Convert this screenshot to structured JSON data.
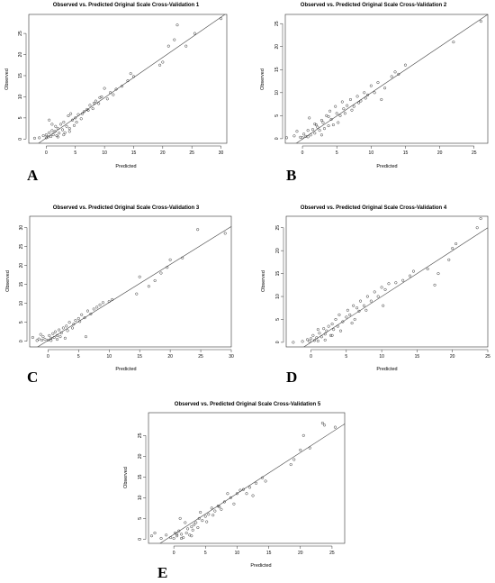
{
  "chart_data": [
    {
      "type": "scatter",
      "letter": "A",
      "title": "Observed vs. Predicted Original Scale Cross-Validation 1",
      "xlabel": "Predicted",
      "ylabel": "Observed",
      "xlim": [
        -3,
        31
      ],
      "ylim": [
        -1,
        29.5
      ],
      "xticks": [
        0,
        5,
        10,
        15,
        20,
        25,
        30
      ],
      "yticks": [
        0,
        5,
        10,
        15,
        20,
        25
      ],
      "fit_line": [
        [
          -3,
          -2.6
        ],
        [
          31,
          29.8
        ]
      ],
      "points": [
        [
          -2,
          0.2
        ],
        [
          -1.2,
          0.3
        ],
        [
          -0.5,
          0.8
        ],
        [
          0,
          0.3
        ],
        [
          0,
          1
        ],
        [
          0.3,
          0.5
        ],
        [
          0.5,
          1.5
        ],
        [
          0.8,
          0.6
        ],
        [
          1,
          2
        ],
        [
          1.2,
          1
        ],
        [
          1.5,
          1.8
        ],
        [
          1.6,
          3
        ],
        [
          1.8,
          0.8
        ],
        [
          2,
          2.5
        ],
        [
          2.2,
          1.4
        ],
        [
          2.5,
          3.5
        ],
        [
          2.8,
          2.2
        ],
        [
          3,
          4
        ],
        [
          3.2,
          1.5
        ],
        [
          3.5,
          3
        ],
        [
          3.8,
          5.5
        ],
        [
          4,
          2.5
        ],
        [
          4.2,
          6
        ],
        [
          4.5,
          4.5
        ],
        [
          4.8,
          3.2
        ],
        [
          5,
          5
        ],
        [
          5.5,
          5.8
        ],
        [
          6,
          4.8
        ],
        [
          6.5,
          6.5
        ],
        [
          7,
          7
        ],
        [
          7.5,
          8
        ],
        [
          8,
          7.2
        ],
        [
          8.5,
          9
        ],
        [
          9,
          8.4
        ],
        [
          9.5,
          10
        ],
        [
          10,
          12
        ],
        [
          10.5,
          9.5
        ],
        [
          11,
          11
        ],
        [
          11.5,
          10.5
        ],
        [
          12,
          11.8
        ],
        [
          13,
          12.5
        ],
        [
          14,
          13.8
        ],
        [
          14.5,
          15.5
        ],
        [
          15,
          14.8
        ],
        [
          19.5,
          17.5
        ],
        [
          20,
          18.2
        ],
        [
          21,
          22
        ],
        [
          22,
          23.5
        ],
        [
          22.5,
          27
        ],
        [
          24,
          22
        ],
        [
          25.5,
          25
        ],
        [
          30,
          28.5
        ],
        [
          0.5,
          4.5
        ],
        [
          1,
          3.5
        ],
        [
          2,
          0.5
        ],
        [
          3,
          1
        ],
        [
          4,
          1.8
        ],
        [
          5.2,
          4
        ],
        [
          6.2,
          6
        ],
        [
          7.2,
          6.8
        ],
        [
          8.2,
          8.5
        ],
        [
          9.2,
          9.8
        ]
      ]
    },
    {
      "type": "scatter",
      "letter": "B",
      "title": "Observed vs. Predicted Original Scale Cross-Validation 2",
      "xlabel": "Predicted",
      "ylabel": "Observed",
      "xlim": [
        -2.5,
        27
      ],
      "ylim": [
        -1,
        27
      ],
      "xticks": [
        0,
        5,
        10,
        15,
        20,
        25
      ],
      "yticks": [
        0,
        5,
        10,
        15,
        20,
        25
      ],
      "fit_line": [
        [
          -2.5,
          -2.6
        ],
        [
          27,
          27
        ]
      ],
      "points": [
        [
          -2.3,
          0.2
        ],
        [
          -1.2,
          0.6
        ],
        [
          -0.8,
          1.6
        ],
        [
          -0.3,
          0.3
        ],
        [
          0,
          0.2
        ],
        [
          0.2,
          1
        ],
        [
          0.5,
          0.5
        ],
        [
          0.8,
          0.4
        ],
        [
          1,
          4.5
        ],
        [
          1.2,
          0.8
        ],
        [
          1.5,
          2
        ],
        [
          1.8,
          1.2
        ],
        [
          2,
          3
        ],
        [
          2.2,
          2.5
        ],
        [
          2.5,
          1.8
        ],
        [
          2.8,
          4
        ],
        [
          3,
          3.5
        ],
        [
          3.2,
          2.2
        ],
        [
          3.5,
          5
        ],
        [
          3.8,
          2.8
        ],
        [
          4,
          6
        ],
        [
          4.2,
          4.2
        ],
        [
          4.5,
          3
        ],
        [
          4.8,
          7
        ],
        [
          5,
          5.5
        ],
        [
          5.5,
          5
        ],
        [
          5.8,
          8
        ],
        [
          6,
          6.5
        ],
        [
          6.5,
          7.2
        ],
        [
          7,
          8.5
        ],
        [
          7.5,
          7
        ],
        [
          8,
          9.2
        ],
        [
          8.5,
          8.2
        ],
        [
          9,
          10
        ],
        [
          9.5,
          9.5
        ],
        [
          10,
          11.5
        ],
        [
          10.5,
          10
        ],
        [
          11,
          12.2
        ],
        [
          11.5,
          8.5
        ],
        [
          12,
          11
        ],
        [
          13,
          13.5
        ],
        [
          13.5,
          14.5
        ],
        [
          14,
          14
        ],
        [
          15,
          16
        ],
        [
          22,
          21
        ],
        [
          26,
          25.5
        ],
        [
          0.8,
          1.8
        ],
        [
          1.8,
          3.2
        ],
        [
          2.8,
          0.8
        ],
        [
          3.8,
          4.8
        ],
        [
          5.2,
          3.5
        ],
        [
          6.2,
          5.5
        ],
        [
          7.2,
          6.2
        ],
        [
          8.2,
          7.8
        ],
        [
          9.2,
          8.8
        ]
      ]
    },
    {
      "type": "scatter",
      "letter": "C",
      "title": "Observed vs. Predicted Original Scale Cross-Validation 3",
      "xlabel": "Predicted",
      "ylabel": "Observed",
      "xlim": [
        -3,
        30
      ],
      "ylim": [
        -1.5,
        33
      ],
      "xticks": [
        0,
        5,
        10,
        15,
        20,
        25,
        30
      ],
      "yticks": [
        0,
        5,
        10,
        15,
        20,
        25,
        30
      ],
      "fit_line": [
        [
          -3,
          -2.8
        ],
        [
          30,
          30.3
        ]
      ],
      "points": [
        [
          -2.5,
          1
        ],
        [
          -1.8,
          0.2
        ],
        [
          -1.5,
          0.6
        ],
        [
          -1,
          0.3
        ],
        [
          -0.8,
          1.2
        ],
        [
          -0.5,
          0.5
        ],
        [
          0,
          0.3
        ],
        [
          0.2,
          1.5
        ],
        [
          0.5,
          0.8
        ],
        [
          0.8,
          2
        ],
        [
          1,
          1
        ],
        [
          1.2,
          2.5
        ],
        [
          1.5,
          1.5
        ],
        [
          1.8,
          3
        ],
        [
          2,
          1.2
        ],
        [
          2.2,
          2.2
        ],
        [
          2.5,
          3.5
        ],
        [
          2.8,
          0.8
        ],
        [
          3,
          4
        ],
        [
          3.5,
          5
        ],
        [
          4,
          3.5
        ],
        [
          4.5,
          5.5
        ],
        [
          5,
          6
        ],
        [
          5.5,
          7
        ],
        [
          6,
          6.2
        ],
        [
          6.5,
          8
        ],
        [
          7,
          7.2
        ],
        [
          7.5,
          8.5
        ],
        [
          8,
          9
        ],
        [
          8.5,
          9.6
        ],
        [
          9,
          10.2
        ],
        [
          10,
          10.5
        ],
        [
          10.5,
          11
        ],
        [
          14.5,
          12.5
        ],
        [
          15,
          17
        ],
        [
          16.5,
          14.5
        ],
        [
          17.5,
          16
        ],
        [
          18.5,
          18
        ],
        [
          19.5,
          19.5
        ],
        [
          20,
          21.5
        ],
        [
          22,
          22
        ],
        [
          24.5,
          29.5
        ],
        [
          28,
          33.5
        ],
        [
          29,
          28.5
        ],
        [
          0.5,
          0.2
        ],
        [
          1.5,
          0.5
        ],
        [
          -1.2,
          1.8
        ],
        [
          3.2,
          2.8
        ],
        [
          4.2,
          4.5
        ],
        [
          5.2,
          5.2
        ],
        [
          6.2,
          1.2
        ]
      ]
    },
    {
      "type": "scatter",
      "letter": "D",
      "title": "Observed vs. Predicted Original Scale Cross-Validation 4",
      "xlabel": "Predicted",
      "ylabel": "Observed",
      "xlim": [
        -3.5,
        25
      ],
      "ylim": [
        -1,
        27.5
      ],
      "xticks": [
        0,
        5,
        10,
        15,
        20,
        25
      ],
      "yticks": [
        0,
        5,
        10,
        15,
        20,
        25
      ],
      "fit_line": [
        [
          -3.5,
          -3.5
        ],
        [
          25,
          25
        ]
      ],
      "points": [
        [
          -2.5,
          0
        ],
        [
          -1.2,
          0.2
        ],
        [
          -0.5,
          0.6
        ],
        [
          -0.2,
          0.2
        ],
        [
          0,
          0.8
        ],
        [
          0.3,
          1.5
        ],
        [
          0.5,
          0.4
        ],
        [
          0.8,
          1
        ],
        [
          1,
          0.3
        ],
        [
          1.2,
          2
        ],
        [
          1.5,
          1.2
        ],
        [
          1.8,
          3
        ],
        [
          2,
          1.8
        ],
        [
          2.2,
          2.5
        ],
        [
          2.5,
          3.5
        ],
        [
          2.8,
          1.5
        ],
        [
          3,
          4
        ],
        [
          3.2,
          2.8
        ],
        [
          3.5,
          5
        ],
        [
          3.8,
          3.5
        ],
        [
          4,
          6
        ],
        [
          4.5,
          4.5
        ],
        [
          5,
          5.5
        ],
        [
          5.2,
          7
        ],
        [
          5.5,
          6
        ],
        [
          6,
          8
        ],
        [
          6.2,
          5
        ],
        [
          6.5,
          7.5
        ],
        [
          7,
          9
        ],
        [
          7.5,
          8
        ],
        [
          8,
          10
        ],
        [
          8.5,
          9
        ],
        [
          9,
          11
        ],
        [
          9.5,
          10
        ],
        [
          10,
          12
        ],
        [
          10.2,
          8
        ],
        [
          10.5,
          11.5
        ],
        [
          11,
          12.8
        ],
        [
          12,
          13
        ],
        [
          13,
          13.5
        ],
        [
          14,
          14.5
        ],
        [
          14.5,
          15.5
        ],
        [
          16.5,
          16
        ],
        [
          17.5,
          12.5
        ],
        [
          18,
          15
        ],
        [
          19.5,
          18
        ],
        [
          20,
          20.5
        ],
        [
          20.5,
          21.5
        ],
        [
          23.5,
          25
        ],
        [
          24,
          27
        ],
        [
          1,
          2.8
        ],
        [
          2,
          0.5
        ],
        [
          3,
          1.5
        ],
        [
          4.2,
          2.5
        ],
        [
          5.8,
          4.2
        ],
        [
          6.8,
          6.8
        ],
        [
          7.8,
          7
        ]
      ]
    },
    {
      "type": "scatter",
      "letter": "E",
      "title": "Observed vs. Predicted Original Scale Cross-Validation 5",
      "xlabel": "Predicted",
      "ylabel": "Observed",
      "xlim": [
        -4,
        27
      ],
      "ylim": [
        -1,
        30.5
      ],
      "xticks": [
        0,
        5,
        10,
        15,
        20,
        25
      ],
      "yticks": [
        0,
        5,
        10,
        15,
        20,
        25
      ],
      "fit_line": [
        [
          -4,
          -2.8
        ],
        [
          27,
          27.8
        ]
      ],
      "points": [
        [
          -3.5,
          0.8
        ],
        [
          -3,
          1.5
        ],
        [
          -2,
          0.2
        ],
        [
          -1.2,
          1
        ],
        [
          -0.5,
          0.4
        ],
        [
          0,
          0.2
        ],
        [
          0.2,
          1.5
        ],
        [
          0.5,
          0.8
        ],
        [
          0.8,
          2
        ],
        [
          1,
          5
        ],
        [
          1.2,
          1.2
        ],
        [
          1.5,
          0.4
        ],
        [
          1.8,
          4
        ],
        [
          2,
          1.5
        ],
        [
          2.2,
          2.5
        ],
        [
          2.5,
          1
        ],
        [
          2.8,
          3
        ],
        [
          3,
          2.2
        ],
        [
          3.2,
          3.5
        ],
        [
          3.5,
          4
        ],
        [
          3.8,
          2.8
        ],
        [
          4,
          5
        ],
        [
          4.2,
          6.5
        ],
        [
          4.5,
          4.5
        ],
        [
          5,
          5.5
        ],
        [
          5.5,
          6
        ],
        [
          6,
          7.5
        ],
        [
          6.5,
          6.8
        ],
        [
          7,
          8
        ],
        [
          7.5,
          7.2
        ],
        [
          8,
          9
        ],
        [
          8.5,
          11
        ],
        [
          9,
          10
        ],
        [
          9.5,
          8.5
        ],
        [
          10,
          11
        ],
        [
          10.5,
          11.8
        ],
        [
          11,
          12
        ],
        [
          11.5,
          11
        ],
        [
          12,
          12.5
        ],
        [
          12.5,
          10.5
        ],
        [
          13,
          13.5
        ],
        [
          14,
          14.8
        ],
        [
          14.5,
          14
        ],
        [
          18.5,
          18
        ],
        [
          19,
          19.2
        ],
        [
          20,
          21.5
        ],
        [
          20.5,
          25
        ],
        [
          21.5,
          22
        ],
        [
          23.5,
          28
        ],
        [
          23.8,
          27.5
        ],
        [
          25.5,
          27
        ],
        [
          0.5,
          1.2
        ],
        [
          1.2,
          0.2
        ],
        [
          2.8,
          0.8
        ],
        [
          5.2,
          4.2
        ],
        [
          6.2,
          5.8
        ],
        [
          7.2,
          7.8
        ]
      ]
    }
  ]
}
